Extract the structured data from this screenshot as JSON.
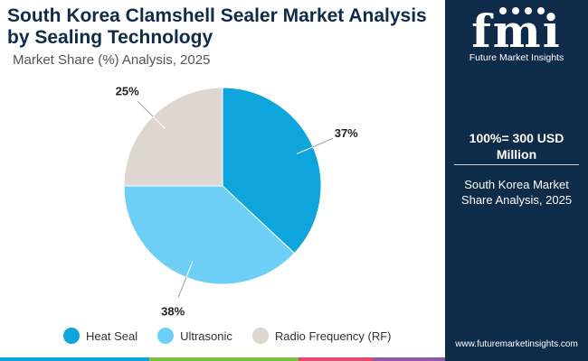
{
  "header": {
    "title": "South Korea Clamshell Sealer Market Analysis by Sealing Technology",
    "subtitle": "Market Share (%) Analysis, 2025"
  },
  "sidebar": {
    "logo_text": "fmi",
    "logo_subtext": "Future Market Insights",
    "total_label": "100%= 300 USD Million",
    "caption": "South Korea Market Share Analysis, 2025",
    "website": "www.futuremarketinsights.com"
  },
  "chart_data": {
    "type": "pie",
    "categories": [
      "Heat Seal",
      "Ultrasonic",
      "Radio Frequency (RF)"
    ],
    "values": [
      37,
      38,
      25
    ],
    "labels": [
      "37%",
      "38%",
      "25%"
    ],
    "colors": [
      "#0ea5dd",
      "#6ecff6",
      "#ddd6d1"
    ],
    "legend_position": "bottom"
  },
  "bottom_bar_colors": [
    "#0ea5dd",
    "#7cc242",
    "#e84a6f",
    "#8e5aa8"
  ]
}
